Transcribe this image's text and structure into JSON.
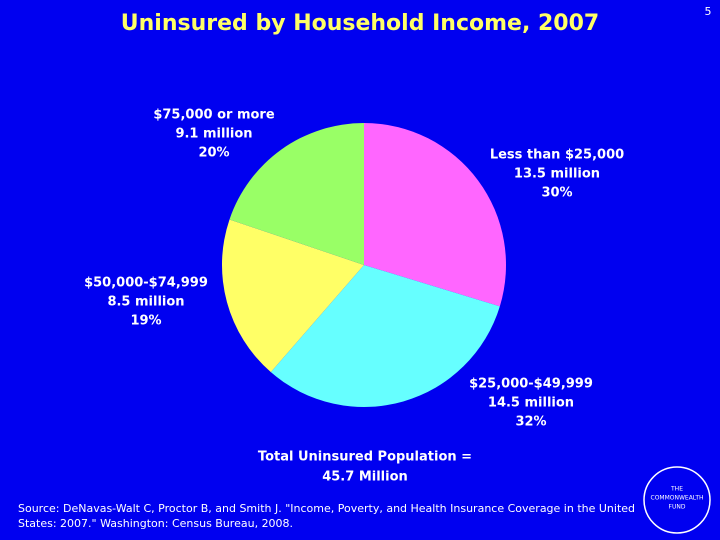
{
  "slide_number": "5",
  "chart_data": {
    "type": "pie",
    "title": "Uninsured by Household Income, 2007",
    "categories": [
      "Less than $25,000",
      "$25,000-$49,999",
      "$50,000-$74,999",
      "$75,000 or more"
    ],
    "amount_labels": [
      "13.5 million",
      "14.5 million",
      "8.5 million",
      "9.1 million"
    ],
    "values": [
      30,
      32,
      19,
      20
    ],
    "value_labels": [
      "30%",
      "32%",
      "19%",
      "20%"
    ],
    "colors": [
      "#ff66ff",
      "#66ffff",
      "#ffff66",
      "#99ff66"
    ],
    "total_label": [
      "Total Uninsured Population =",
      "45.7 Million"
    ]
  },
  "source": [
    "Source: DeNavas-Walt C, Proctor B, and Smith J. \"Income, Poverty, and Health Insurance Coverage in the United",
    "States: 2007.\" Washington: Census Bureau, 2008."
  ],
  "logo": [
    "THE",
    "COMMONWEALTH",
    "FUND"
  ]
}
